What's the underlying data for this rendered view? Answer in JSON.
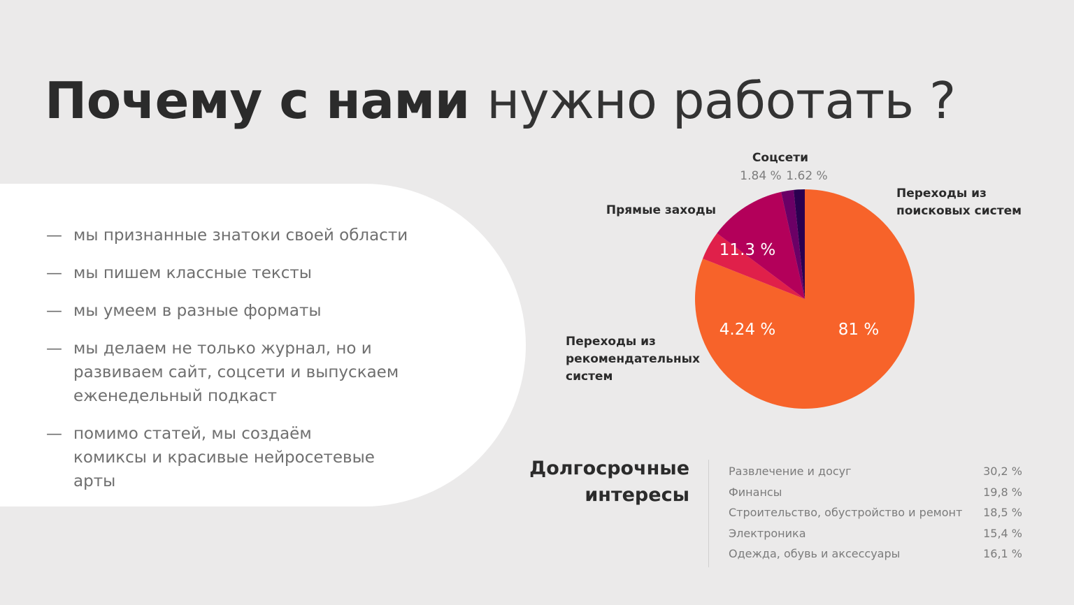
{
  "title": {
    "bold": "Почему с нами",
    "light": "нужно работать ?"
  },
  "points": [
    {
      "dash": "—",
      "text": "мы признанные знатоки своей области"
    },
    {
      "dash": "—",
      "text": "мы пишем классные тексты"
    },
    {
      "dash": "—",
      "text": "мы умеем в разные форматы"
    },
    {
      "dash": "—",
      "text": "мы делаем не только журнал, но и развиваем сайт, соцсети и выпускаем еженедельный подкаст"
    },
    {
      "dash": "—",
      "text": "помимо статей, мы создаём комиксы и красивые нейросетевые арты"
    }
  ],
  "chart_data": {
    "type": "pie",
    "title": "",
    "slices": [
      {
        "label": [
          "Переходы из",
          "поисковых систем"
        ],
        "value": 81,
        "display": "81 %",
        "color": "#f7632a"
      },
      {
        "label": [
          "Переходы из",
          "рекомендательных",
          "систем"
        ],
        "value": 4.24,
        "display": "4.24 %",
        "color": "#e0204a"
      },
      {
        "label": [
          "Прямые заходы"
        ],
        "value": 11.3,
        "display": "11.3 %",
        "color": "#b3005a"
      },
      {
        "label": [
          "Соцсети"
        ],
        "value": 1.84,
        "display": "1.84 %",
        "color": "#6b0066"
      },
      {
        "label": [],
        "value": 1.62,
        "display": "1.62 %",
        "color": "#2b0050"
      }
    ]
  },
  "interests": {
    "title_line1": "Долгосрочные",
    "title_line2": "интересы",
    "rows": [
      {
        "name": "Развлечение и досуг",
        "value": "30,2 %"
      },
      {
        "name": "Финансы",
        "value": "19,8 %"
      },
      {
        "name": "Строительство, обустройство и ремонт",
        "value": "18,5 %"
      },
      {
        "name": "Электроника",
        "value": "15,4 %"
      },
      {
        "name": "Одежда, обувь и аксессуары",
        "value": "16,1 %"
      }
    ]
  }
}
